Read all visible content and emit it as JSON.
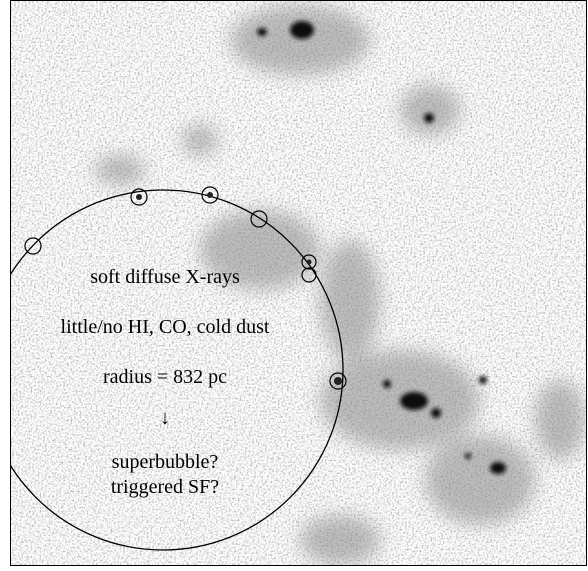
{
  "annotations": {
    "lines": [
      "soft diffuse X-rays",
      "little/no HI, CO, cold dust",
      "radius = 832 pc",
      "↓",
      "superbubble?",
      "triggered SF?"
    ]
  }
}
